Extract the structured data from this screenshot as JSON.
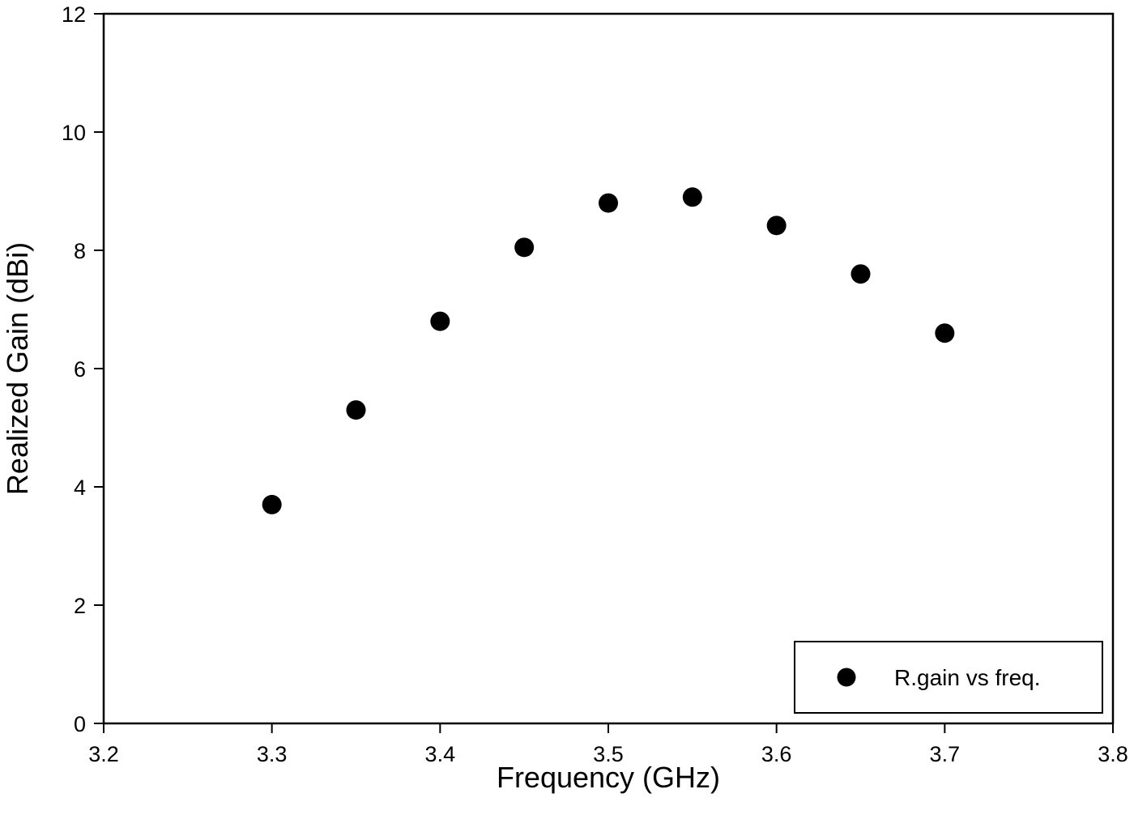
{
  "chart_data": {
    "type": "scatter",
    "title": "",
    "xlabel": "Frequency (GHz)",
    "ylabel": "Realized Gain (dBi)",
    "xlim": [
      3.2,
      3.8
    ],
    "ylim": [
      0,
      12
    ],
    "xticks": [
      "3.2",
      "3.3",
      "3.4",
      "3.5",
      "3.6",
      "3.7",
      "3.8"
    ],
    "yticks": [
      "0",
      "2",
      "4",
      "6",
      "8",
      "10",
      "12"
    ],
    "grid": false,
    "legend_position": "lower right",
    "series": [
      {
        "name": "R.gain vs freq.",
        "marker": "filled-circle",
        "color": "#000000",
        "x": [
          3.3,
          3.35,
          3.4,
          3.45,
          3.5,
          3.55,
          3.6,
          3.65,
          3.7
        ],
        "y": [
          3.7,
          5.3,
          6.8,
          8.05,
          8.8,
          8.9,
          8.42,
          7.6,
          6.6
        ]
      }
    ]
  }
}
